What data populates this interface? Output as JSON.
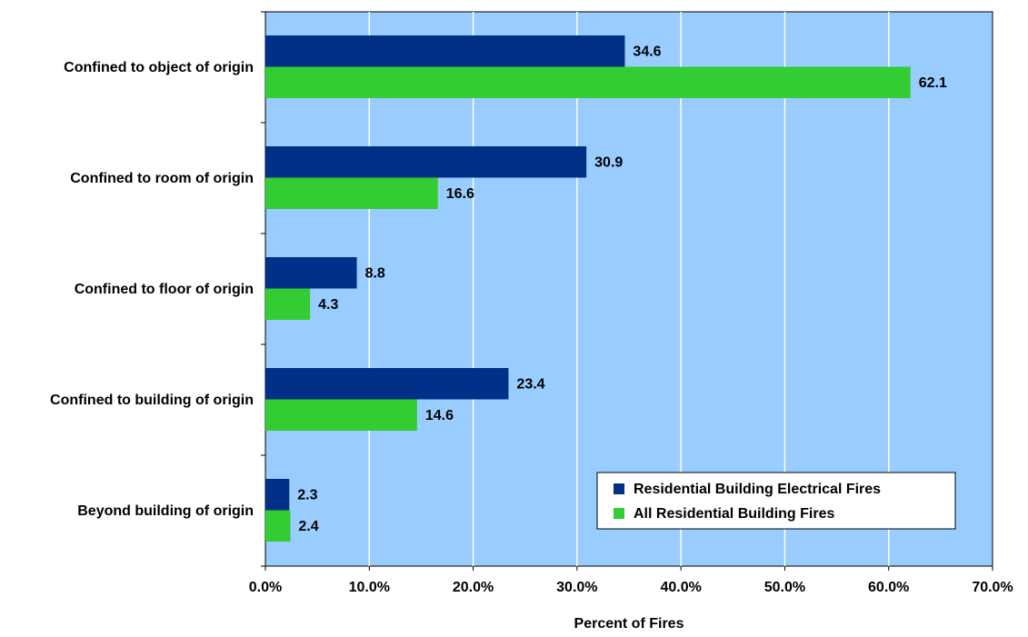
{
  "chart_data": {
    "type": "hbar",
    "xlabel": "Percent of Fires",
    "categories": [
      "Confined to object of origin",
      "Confined to room of origin",
      "Confined to floor of origin",
      "Confined to building of origin",
      "Beyond building of origin"
    ],
    "series": [
      {
        "name": "Residential Building Electrical Fires",
        "color": "#002f87",
        "values": [
          34.6,
          30.9,
          8.8,
          23.4,
          2.3
        ]
      },
      {
        "name": "All Residential Building Fires",
        "color": "#33cc33",
        "values": [
          62.1,
          16.6,
          4.3,
          14.6,
          2.4
        ]
      }
    ],
    "xlim": [
      0,
      70
    ],
    "xticks": [
      {
        "value": 0,
        "label": "0.0%"
      },
      {
        "value": 10,
        "label": "10.0%"
      },
      {
        "value": 20,
        "label": "20.0%"
      },
      {
        "value": 30,
        "label": "30.0%"
      },
      {
        "value": 40,
        "label": "40.0%"
      },
      {
        "value": 50,
        "label": "50.0%"
      },
      {
        "value": 60,
        "label": "60.0%"
      },
      {
        "value": 70,
        "label": "70.0%"
      }
    ],
    "grid": true,
    "legend": "lower-right"
  }
}
